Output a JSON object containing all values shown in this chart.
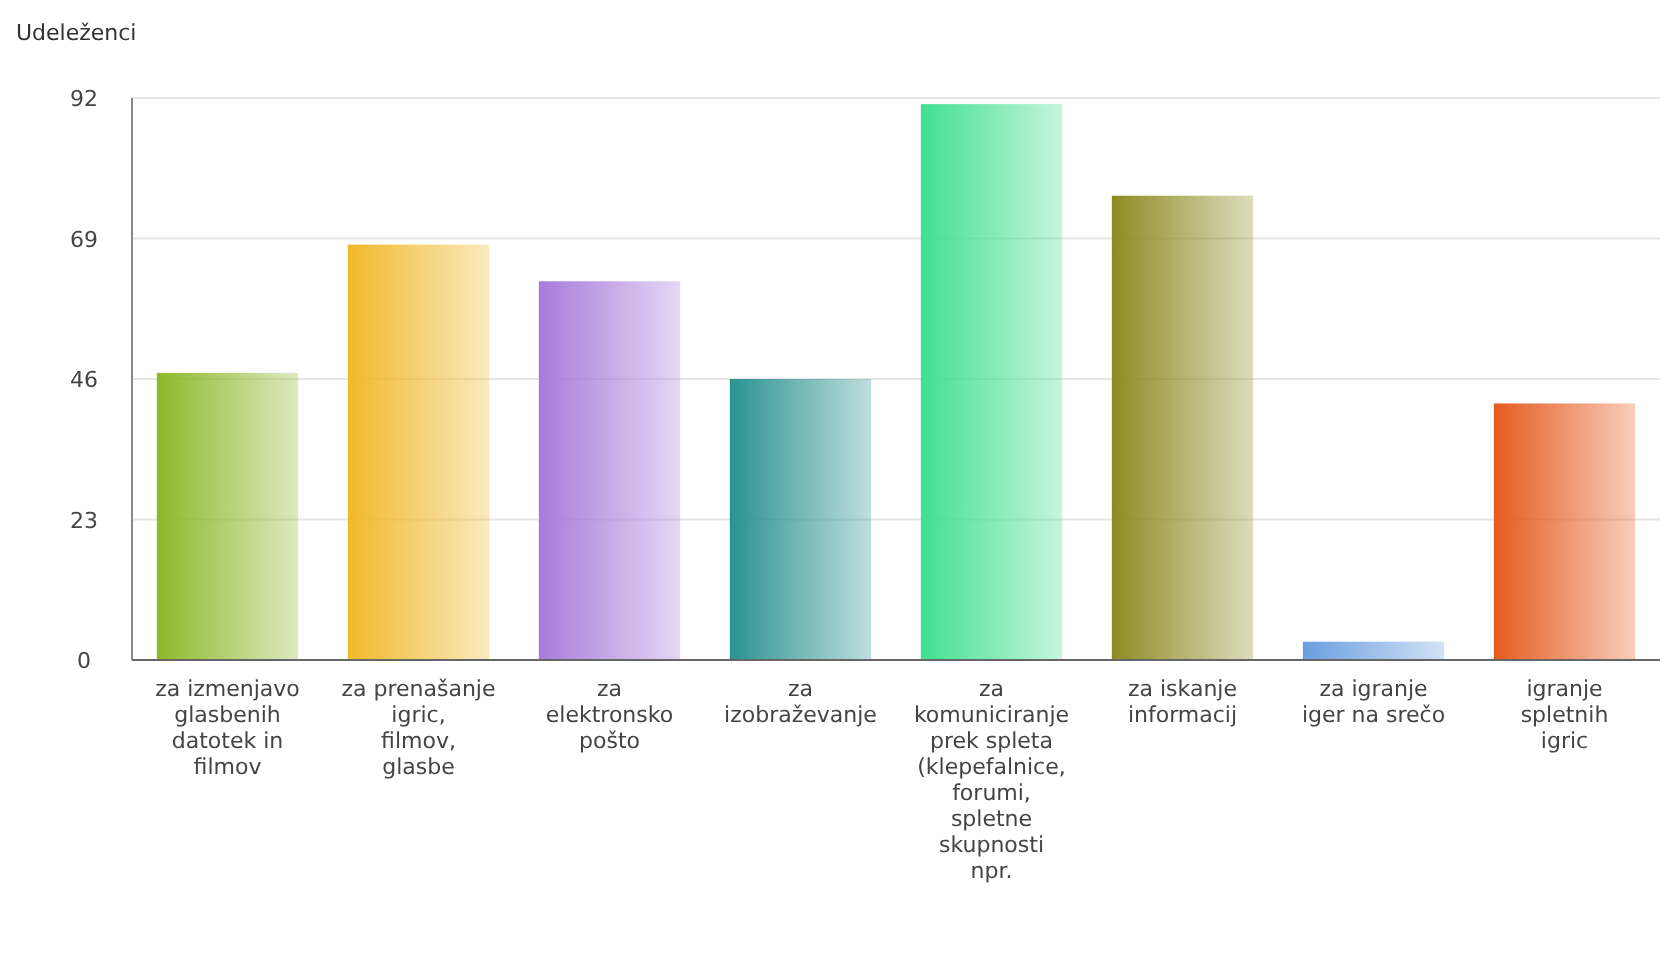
{
  "chart_data": {
    "type": "bar",
    "ylabel": "Udeleženci",
    "categories": [
      "za izmenjavo glasbenih datotek in filmov",
      "za prenašanje igric, filmov, glasbe",
      "za elektronsko pošto",
      "za izobraževanje",
      "za komuniciranje prek spleta (klepefalnice, forumi, spletne skupnosti npr.",
      "za iskanje informacij",
      "za igranje iger na srečo",
      "igranje spletnih igric"
    ],
    "values": [
      47,
      68,
      62,
      46,
      91,
      76,
      3,
      42
    ],
    "colors": [
      "#8db82a",
      "#f0b92a",
      "#a77bdb",
      "#2a9290",
      "#40e090",
      "#8e8a22",
      "#6a9ee0",
      "#e65a1e"
    ],
    "ylim": [
      0,
      92
    ],
    "yticks": [
      0,
      23,
      46,
      69,
      92
    ],
    "grid": "y"
  }
}
